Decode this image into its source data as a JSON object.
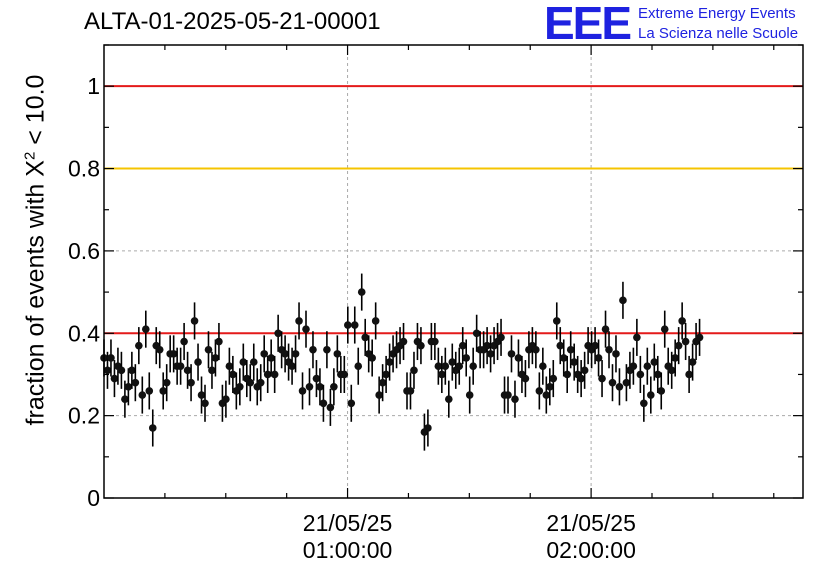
{
  "header": {
    "title": "ALTA-01-2025-05-21-00001"
  },
  "logo": {
    "mark": "EEE",
    "line1": "Extreme Energy Events",
    "line2": "La Scienza nelle Scuole",
    "color": "#1e22e0"
  },
  "chart_data": {
    "type": "scatter",
    "title": "ALTA-01-2025-05-21-00001",
    "ylabel": "fraction of events with X² < 10.0",
    "ylabel_parts": {
      "pre": "fraction of events with X",
      "sup": "2",
      "post": " < 10.0"
    },
    "xlabel": "",
    "xlim": [
      0,
      2.87
    ],
    "ylim": [
      0,
      1.1
    ],
    "yticks": [
      0,
      0.2,
      0.4,
      0.6,
      0.8,
      1
    ],
    "ytick_labels": [
      "0",
      "0.2",
      "0.4",
      "0.6",
      "0.8",
      "1"
    ],
    "xticks": [
      1,
      2
    ],
    "xtick_labels": [
      [
        "21/05/25",
        "01:00:00"
      ],
      [
        "21/05/25",
        "02:00:00"
      ]
    ],
    "x_units": "hours since 21/05/25 00:00:00",
    "x_start": 0.0,
    "x_step": 0.0143,
    "grid": true,
    "reference_lines": [
      {
        "y": 1.0,
        "color": "#e41a1a"
      },
      {
        "y": 0.8,
        "color": "#f5c400"
      },
      {
        "y": 0.4,
        "color": "#e41a1a"
      }
    ],
    "error": 0.045,
    "values": [
      0.34,
      0.31,
      0.34,
      0.29,
      0.32,
      0.31,
      0.24,
      0.27,
      0.31,
      0.28,
      0.37,
      0.25,
      0.41,
      0.26,
      0.17,
      0.37,
      0.36,
      0.26,
      0.28,
      0.35,
      0.35,
      0.32,
      0.32,
      0.38,
      0.31,
      0.28,
      0.43,
      0.33,
      0.25,
      0.23,
      0.36,
      0.31,
      0.34,
      0.38,
      0.23,
      0.24,
      0.32,
      0.3,
      0.26,
      0.27,
      0.33,
      0.29,
      0.28,
      0.33,
      0.27,
      0.28,
      0.35,
      0.3,
      0.34,
      0.3,
      0.4,
      0.36,
      0.35,
      0.33,
      0.32,
      0.35,
      0.43,
      0.26,
      0.41,
      0.27,
      0.36,
      0.29,
      0.27,
      0.23,
      0.36,
      0.22,
      0.27,
      0.35,
      0.3,
      0.3,
      0.42,
      0.23,
      0.42,
      0.32,
      0.5,
      0.39,
      0.35,
      0.34,
      0.43,
      0.25,
      0.28,
      0.3,
      0.33,
      0.35,
      0.36,
      0.37,
      0.38,
      0.26,
      0.26,
      0.31,
      0.38,
      0.37,
      0.16,
      0.17,
      0.38,
      0.38,
      0.32,
      0.3,
      0.32,
      0.24,
      0.33,
      0.31,
      0.32,
      0.37,
      0.34,
      0.25,
      0.32,
      0.4,
      0.36,
      0.36,
      0.37,
      0.35,
      0.37,
      0.38,
      0.39,
      0.25,
      0.25,
      0.35,
      0.24,
      0.34,
      0.3,
      0.29,
      0.36,
      0.37,
      0.36,
      0.26,
      0.32,
      0.25,
      0.27,
      0.29,
      0.43,
      0.37,
      0.34,
      0.3,
      0.36,
      0.33,
      0.3,
      0.29,
      0.31,
      0.37,
      0.36,
      0.37,
      0.34,
      0.29,
      0.41,
      0.36,
      0.28,
      0.35,
      0.27,
      0.48,
      0.28,
      0.31,
      0.32,
      0.39,
      0.3,
      0.23,
      0.32,
      0.25,
      0.33,
      0.3,
      0.26,
      0.41,
      0.32,
      0.31,
      0.34,
      0.37,
      0.43,
      0.38,
      0.3,
      0.33,
      0.38,
      0.39
    ]
  }
}
